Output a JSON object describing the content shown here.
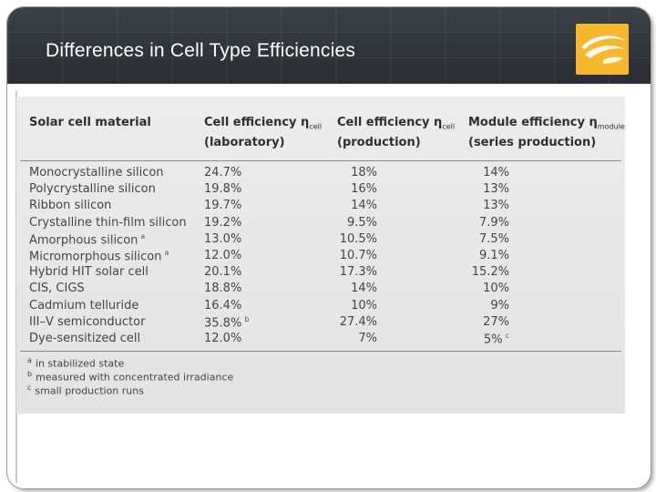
{
  "slide": {
    "title": "Differences in Cell Type Efficiencies"
  },
  "table": {
    "headers": {
      "material": "Solar cell material",
      "lab_line1": "Cell efficiency η",
      "lab_sub": "cell",
      "lab_line2": "(laboratory)",
      "prod_line1": "Cell efficiency η",
      "prod_sub": "cell",
      "prod_line2": "(production)",
      "module_line1": "Module efficiency η",
      "module_sub": "module",
      "module_line2": "(series production)"
    },
    "rows": [
      {
        "material": "Monocrystalline silicon",
        "mark": "",
        "lab": "24.7%",
        "lab_mark": "",
        "prod": "18%",
        "module": "14%",
        "module_mark": ""
      },
      {
        "material": "Polycrystalline silicon",
        "mark": "",
        "lab": "19.8%",
        "lab_mark": "",
        "prod": "16%",
        "module": "13%",
        "module_mark": ""
      },
      {
        "material": "Ribbon silicon",
        "mark": "",
        "lab": "19.7%",
        "lab_mark": "",
        "prod": "14%",
        "module": "13%",
        "module_mark": ""
      },
      {
        "material": "Crystalline thin-film silicon",
        "mark": "",
        "lab": "19.2%",
        "lab_mark": "",
        "prod": "9.5%",
        "module": "7.9%",
        "module_mark": ""
      },
      {
        "material": "Amorphous silicon",
        "mark": "a",
        "lab": "13.0%",
        "lab_mark": "",
        "prod": "10.5%",
        "module": "7.5%",
        "module_mark": ""
      },
      {
        "material": "Micromorphous silicon",
        "mark": "a",
        "lab": "12.0%",
        "lab_mark": "",
        "prod": "10.7%",
        "module": "9.1%",
        "module_mark": ""
      },
      {
        "material": "Hybrid HIT solar cell",
        "mark": "",
        "lab": "20.1%",
        "lab_mark": "",
        "prod": "17.3%",
        "module": "15.2%",
        "module_mark": ""
      },
      {
        "material": "CIS, CIGS",
        "mark": "",
        "lab": "18.8%",
        "lab_mark": "",
        "prod": "14%",
        "module": "10%",
        "module_mark": ""
      },
      {
        "material": "Cadmium telluride",
        "mark": "",
        "lab": "16.4%",
        "lab_mark": "",
        "prod": "10%",
        "module": "9%",
        "module_mark": ""
      },
      {
        "material": "III–V semiconductor",
        "mark": "",
        "lab": "35.8%",
        "lab_mark": "b",
        "prod": "27.4%",
        "module": "27%",
        "module_mark": ""
      },
      {
        "material": "Dye-sensitized cell",
        "mark": "",
        "lab": "12.0%",
        "lab_mark": "",
        "prod": "7%",
        "module": "5%",
        "module_mark": "c"
      }
    ],
    "footnotes": [
      {
        "mark": "a",
        "text": "in stabilized state"
      },
      {
        "mark": "b",
        "text": "measured with concentrated irradiance"
      },
      {
        "mark": "c",
        "text": "small production runs"
      }
    ]
  },
  "colors": {
    "header_bg": "#30353b",
    "logo_bg": "#f5b82e"
  }
}
